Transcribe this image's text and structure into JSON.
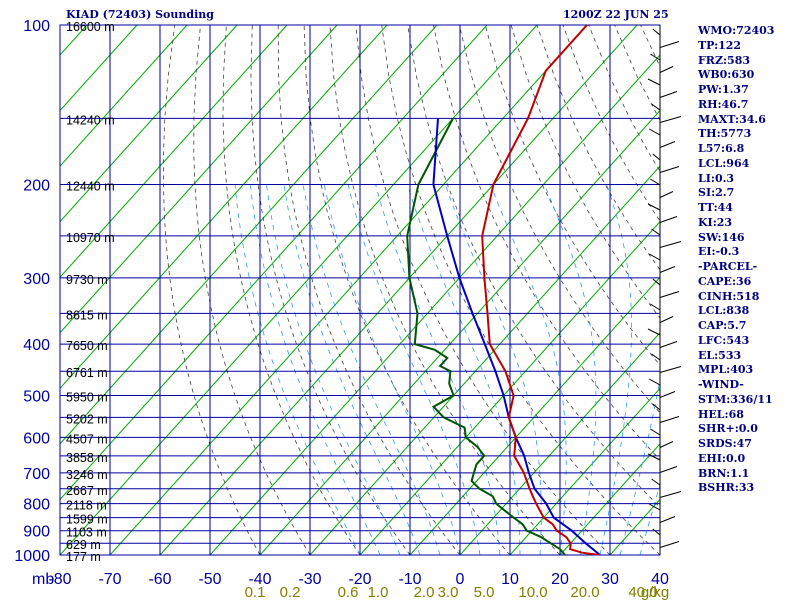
{
  "header": {
    "station": "KIAD (72403) Sounding",
    "time": "1200Z 22 JUN 25"
  },
  "indices": [
    "WMO:72403",
    "TP:122",
    "FRZ:583",
    "WB0:630",
    "PW:1.37",
    "RH:46.7",
    "MAXT:34.6",
    "TH:5773",
    "L57:6.8",
    "LCL:964",
    "LI:0.3",
    "SI:2.7",
    "TT:44",
    "KI:23",
    "SW:146",
    "EI:-0.3",
    "-PARCEL-",
    "CAPE:36",
    "CINH:518",
    "LCL:838",
    "CAP:5.7",
    "LFC:543",
    "EL:533",
    "MPL:403",
    "-WIND-",
    "STM:336/11",
    "HEL:68",
    "SHR+:0.0",
    "SRDS:47",
    "EHI:0.0",
    "BRN:1.1",
    "BSHR:33"
  ],
  "colors": {
    "grid": "#0000a0",
    "isotherm": "#00aa00",
    "dry_adiabat": "#404040",
    "moist_adiabat": "#3399ff",
    "temperature": "#c00000",
    "dewpoint": "#005500",
    "parcel": "#0000c0",
    "mixing_label": "#808000",
    "wind": "#000000"
  },
  "chart_data": {
    "type": "skew-t",
    "y_axis_unit": "mb",
    "pressure_ticks": [
      100,
      200,
      300,
      400,
      500,
      600,
      700,
      800,
      900,
      1000
    ],
    "temperature_ticks": [
      -80,
      -70,
      -60,
      -50,
      -40,
      -30,
      -20,
      -10,
      0,
      10,
      20,
      30,
      40
    ],
    "ylim": [
      1000,
      100
    ],
    "xlim": [
      -80,
      40
    ],
    "mixing_ratio_labels": [
      "0.1",
      "0.2",
      "0.6",
      "1.0",
      "2.0",
      "3.0",
      "5.0",
      "10.0",
      "20.0",
      "40.0",
      "g/kg"
    ],
    "height_labels": [
      {
        "p": 100,
        "label": "16600 m"
      },
      {
        "p": 150,
        "label": "14240 m"
      },
      {
        "p": 200,
        "label": "12440 m"
      },
      {
        "p": 250,
        "label": "10970 m"
      },
      {
        "p": 300,
        "label": "9730 m"
      },
      {
        "p": 350,
        "label": "8615 m"
      },
      {
        "p": 400,
        "label": "7650 m"
      },
      {
        "p": 450,
        "label": "6761 m"
      },
      {
        "p": 500,
        "label": "5950 m"
      },
      {
        "p": 550,
        "label": "5202 m"
      },
      {
        "p": 600,
        "label": "4507 m"
      },
      {
        "p": 650,
        "label": "3858 m"
      },
      {
        "p": 700,
        "label": "3246 m"
      },
      {
        "p": 750,
        "label": "2667 m"
      },
      {
        "p": 800,
        "label": "2118 m"
      },
      {
        "p": 850,
        "label": "1599 m"
      },
      {
        "p": 900,
        "label": "1103 m"
      },
      {
        "p": 950,
        "label": "629 m"
      },
      {
        "p": 1000,
        "label": "177 m"
      }
    ],
    "temperature": [
      {
        "p": 1000,
        "t": 28
      },
      {
        "p": 990,
        "t": 24
      },
      {
        "p": 975,
        "t": 21
      },
      {
        "p": 950,
        "t": 20
      },
      {
        "p": 925,
        "t": 18
      },
      {
        "p": 900,
        "t": 15
      },
      {
        "p": 875,
        "t": 13
      },
      {
        "p": 850,
        "t": 10
      },
      {
        "p": 825,
        "t": 8
      },
      {
        "p": 800,
        "t": 6
      },
      {
        "p": 775,
        "t": 4
      },
      {
        "p": 750,
        "t": 2
      },
      {
        "p": 700,
        "t": -2
      },
      {
        "p": 650,
        "t": -7
      },
      {
        "p": 600,
        "t": -10
      },
      {
        "p": 550,
        "t": -15
      },
      {
        "p": 500,
        "t": -18
      },
      {
        "p": 450,
        "t": -24
      },
      {
        "p": 400,
        "t": -32
      },
      {
        "p": 350,
        "t": -38
      },
      {
        "p": 300,
        "t": -45
      },
      {
        "p": 250,
        "t": -53
      },
      {
        "p": 200,
        "t": -60
      },
      {
        "p": 150,
        "t": -65
      },
      {
        "p": 122,
        "t": -70
      },
      {
        "p": 100,
        "t": -70
      }
    ],
    "dewpoint": [
      {
        "p": 1000,
        "t": 21
      },
      {
        "p": 975,
        "t": 19
      },
      {
        "p": 950,
        "t": 16
      },
      {
        "p": 925,
        "t": 13
      },
      {
        "p": 900,
        "t": 9
      },
      {
        "p": 875,
        "t": 7
      },
      {
        "p": 850,
        "t": 4
      },
      {
        "p": 825,
        "t": 1
      },
      {
        "p": 800,
        "t": -2
      },
      {
        "p": 775,
        "t": -4
      },
      {
        "p": 750,
        "t": -8
      },
      {
        "p": 725,
        "t": -11
      },
      {
        "p": 700,
        "t": -12
      },
      {
        "p": 675,
        "t": -13
      },
      {
        "p": 650,
        "t": -13
      },
      {
        "p": 625,
        "t": -16
      },
      {
        "p": 600,
        "t": -20
      },
      {
        "p": 575,
        "t": -22
      },
      {
        "p": 550,
        "t": -28
      },
      {
        "p": 525,
        "t": -32
      },
      {
        "p": 500,
        "t": -30
      },
      {
        "p": 475,
        "t": -33
      },
      {
        "p": 450,
        "t": -35
      },
      {
        "p": 440,
        "t": -38
      },
      {
        "p": 425,
        "t": -38
      },
      {
        "p": 410,
        "t": -42
      },
      {
        "p": 400,
        "t": -47
      },
      {
        "p": 350,
        "t": -52
      },
      {
        "p": 300,
        "t": -60
      },
      {
        "p": 250,
        "t": -68
      },
      {
        "p": 200,
        "t": -75
      },
      {
        "p": 150,
        "t": -80
      }
    ],
    "parcel": [
      {
        "p": 1000,
        "t": 28
      },
      {
        "p": 950,
        "t": 23
      },
      {
        "p": 900,
        "t": 18
      },
      {
        "p": 850,
        "t": 12
      },
      {
        "p": 800,
        "t": 8
      },
      {
        "p": 750,
        "t": 3
      },
      {
        "p": 700,
        "t": -1
      },
      {
        "p": 650,
        "t": -5
      },
      {
        "p": 600,
        "t": -10
      },
      {
        "p": 550,
        "t": -15
      },
      {
        "p": 500,
        "t": -20
      },
      {
        "p": 450,
        "t": -26
      },
      {
        "p": 400,
        "t": -33
      },
      {
        "p": 350,
        "t": -41
      },
      {
        "p": 300,
        "t": -50
      },
      {
        "p": 250,
        "t": -60
      },
      {
        "p": 200,
        "t": -72
      },
      {
        "p": 150,
        "t": -83
      }
    ]
  }
}
